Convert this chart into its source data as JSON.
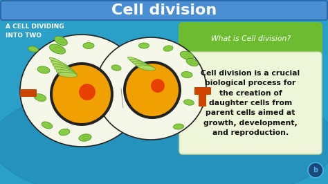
{
  "title": "Cell division",
  "title_color": "#ffffff",
  "title_bg_color": "#4a8fd4",
  "bg_color": "#2aa0c8",
  "bg_dark": "#1a7aaa",
  "subtitle_left": "A CELL DIVIDING\nINTO TWO",
  "subtitle_left_color": "#ffffff",
  "what_is_label": "What is Cell division?",
  "what_is_bg": "#6dbb30",
  "what_is_color": "#ffffff",
  "definition_bg": "#eef5d8",
  "definition_text": "Cell division is a crucial\nbiological process for\nthe creation of\ndaughter cells from\nparent cells aimed at\ngrowth, development,\nand reproduction.",
  "definition_color": "#111111",
  "cell_outer_color": "#f5f8e8",
  "cell_border_color": "#222222",
  "nucleus_outer": "#222222",
  "nucleus_color": "#f0a000",
  "nucleolus_color": "#e84000",
  "chloroplast_color": "#88cc44",
  "chloroplast_edge": "#559922",
  "mito_color": "#88cc44",
  "mito_edge": "#559922",
  "er_color": "#aad860",
  "er_edge": "#559922",
  "organelle_orange": "#cc4400",
  "logo_bg": "#1a4a7a",
  "logo_color": "#4ab0e8",
  "figsize": [
    4.74,
    2.66
  ],
  "dpi": 100
}
